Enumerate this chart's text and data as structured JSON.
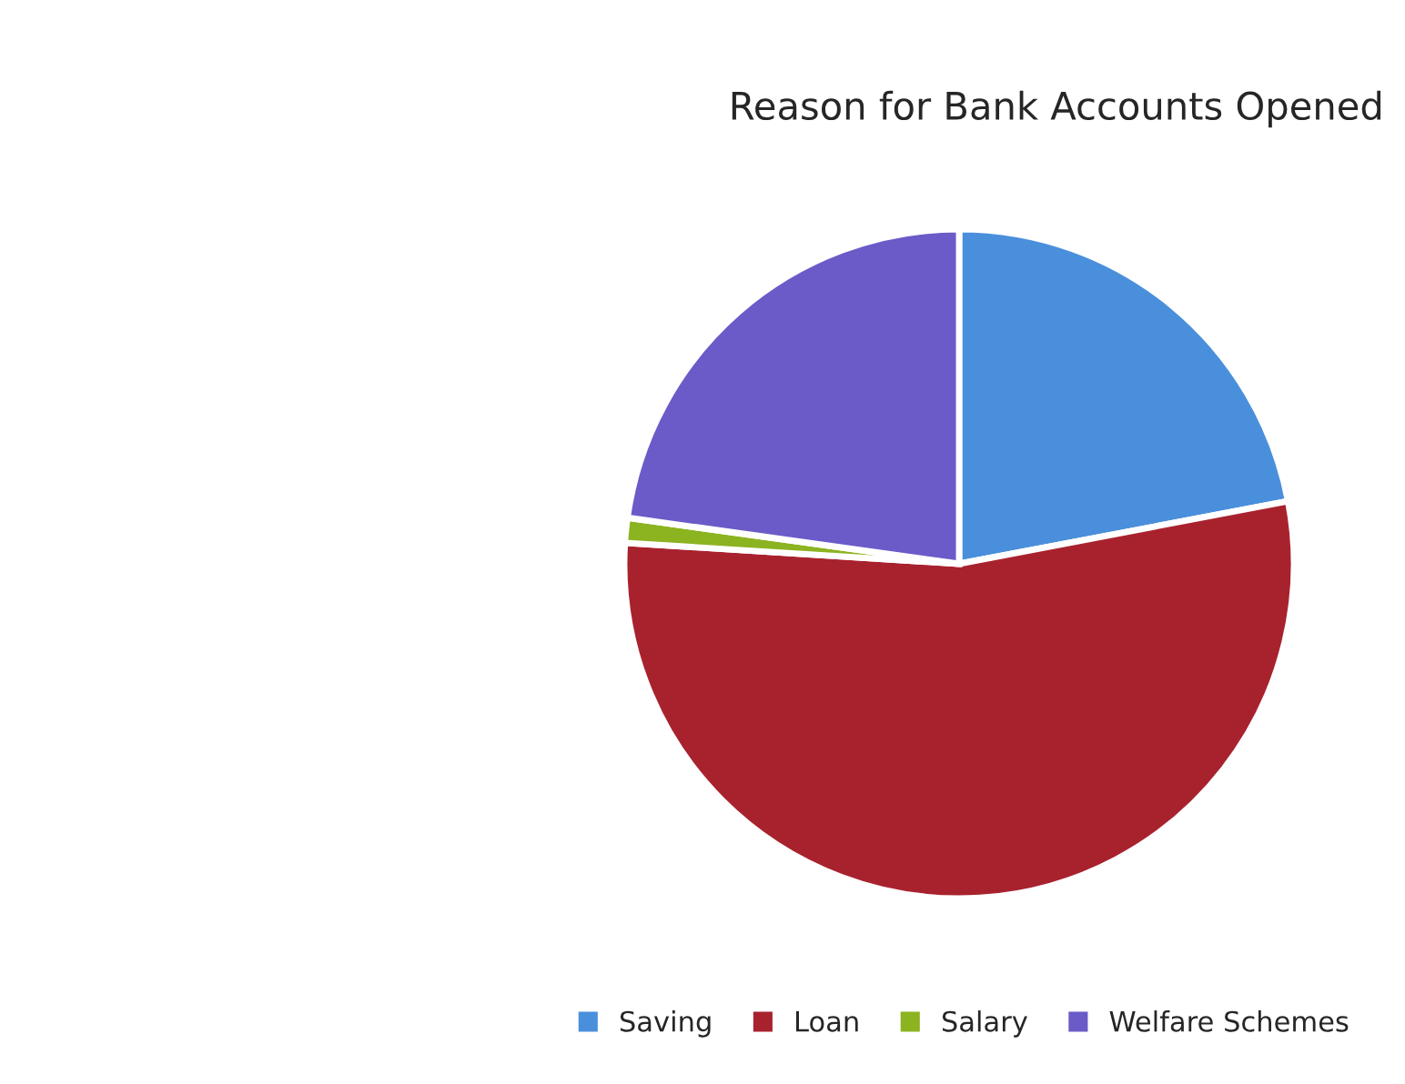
{
  "chart_data": {
    "type": "pie",
    "title": "Reason for Bank Accounts Opened",
    "categories": [
      "Saving",
      "Loan",
      "Salary",
      "Welfare Schemes"
    ],
    "values": [
      22,
      54,
      1.2,
      22.8
    ],
    "colors": [
      "#4a8fdc",
      "#a8222e",
      "#8cb320",
      "#6a5bc8"
    ],
    "legend": "bottom"
  }
}
